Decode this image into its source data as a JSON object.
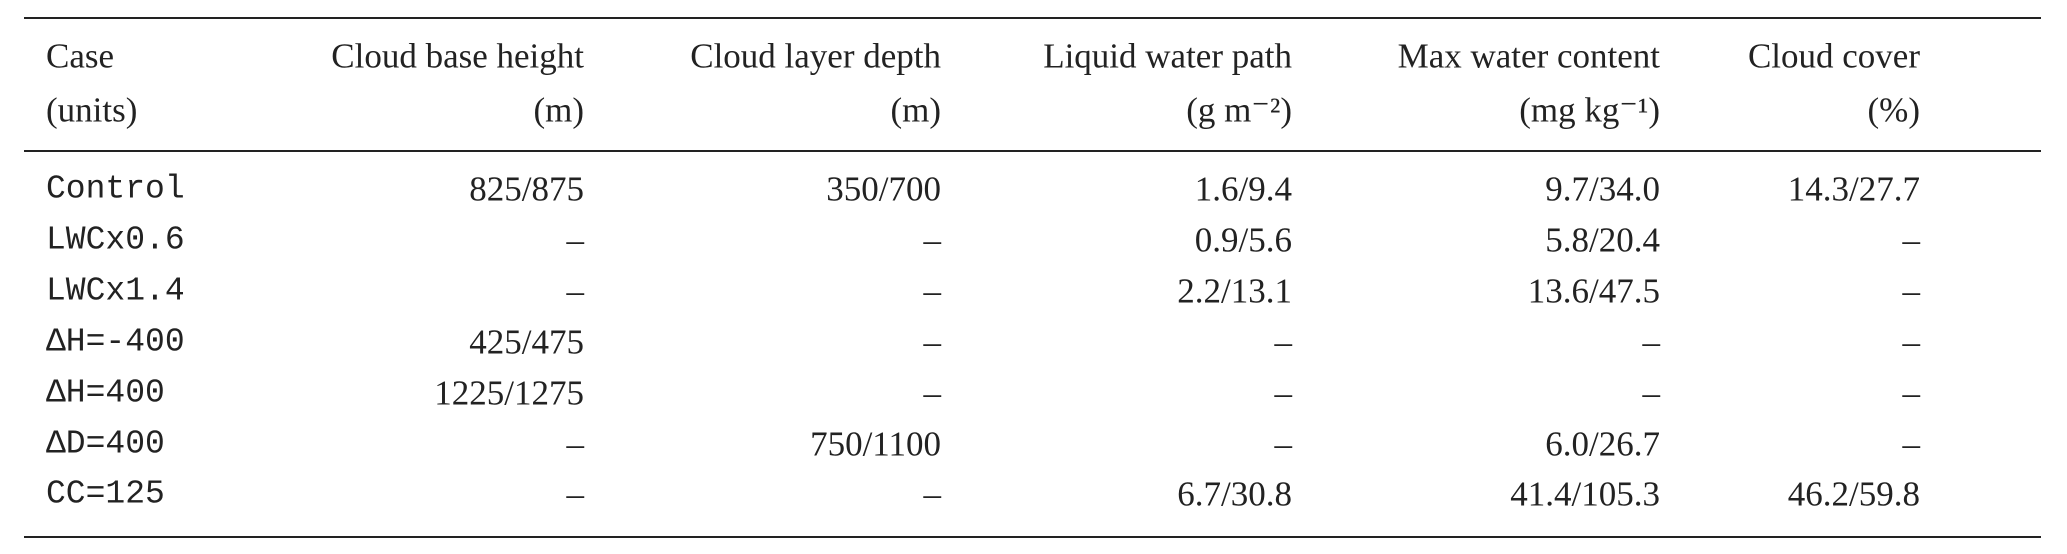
{
  "table": {
    "columns": [
      {
        "name": "Case",
        "units": "(units)"
      },
      {
        "name": "Cloud base height",
        "units": "(m)"
      },
      {
        "name": "Cloud layer depth",
        "units": "(m)"
      },
      {
        "name": "Liquid water path",
        "units": "(g m⁻²)"
      },
      {
        "name": "Max water content",
        "units": "(mg kg⁻¹)"
      },
      {
        "name": "Cloud cover",
        "units": "(%)"
      }
    ],
    "rows": [
      [
        "Control",
        "825/875",
        "350/700",
        "1.6/9.4",
        "9.7/34.0",
        "14.3/27.7"
      ],
      [
        "LWCx0.6",
        "–",
        "–",
        "0.9/5.6",
        "5.8/20.4",
        "–"
      ],
      [
        "LWCx1.4",
        "–",
        "–",
        "2.2/13.1",
        "13.6/47.5",
        "–"
      ],
      [
        "ΔH=-400",
        "425/475",
        "–",
        "–",
        "–",
        "–"
      ],
      [
        "ΔH=400",
        "1225/1275",
        "–",
        "–",
        "–",
        "–"
      ],
      [
        "ΔD=400",
        "–",
        "750/1100",
        "–",
        "6.0/26.7",
        "–"
      ],
      [
        "CC=125",
        "–",
        "–",
        "6.7/30.8",
        "41.4/105.3",
        "46.2/59.8"
      ]
    ]
  }
}
